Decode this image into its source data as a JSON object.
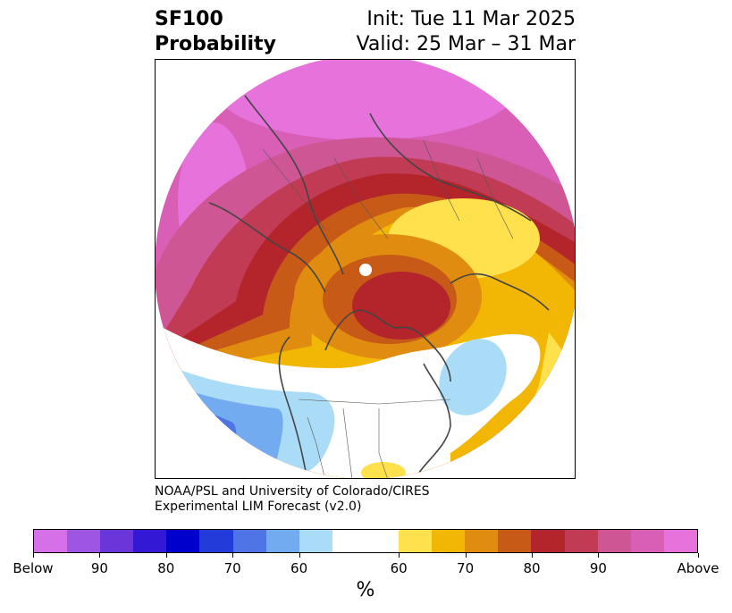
{
  "header": {
    "title_line1": "SF100",
    "title_line2": "Probability",
    "init_text": "Init: Tue 11 Mar 2025",
    "valid_text": "Valid: 25 Mar – 31 Mar"
  },
  "credit": {
    "line1": "NOAA/PSL and University of Colorado/CIRES",
    "line2": "Experimental LIM Forecast (v2.0)"
  },
  "colorbar": {
    "colors": [
      "#d670e8",
      "#9e55e2",
      "#6a35d9",
      "#3318d6",
      "#0000cc",
      "#233bd9",
      "#4f74e6",
      "#73abf1",
      "#aadcf8",
      "#ffffff",
      "#ffe14d",
      "#f2b705",
      "#e08c10",
      "#c85a18",
      "#b3242b",
      "#c23b55",
      "#cf5694",
      "#d95fb6",
      "#e673db"
    ],
    "labels": [
      "Below",
      "90",
      "80",
      "70",
      "60",
      "60",
      "70",
      "80",
      "90",
      "Above"
    ],
    "unit": "%"
  }
}
